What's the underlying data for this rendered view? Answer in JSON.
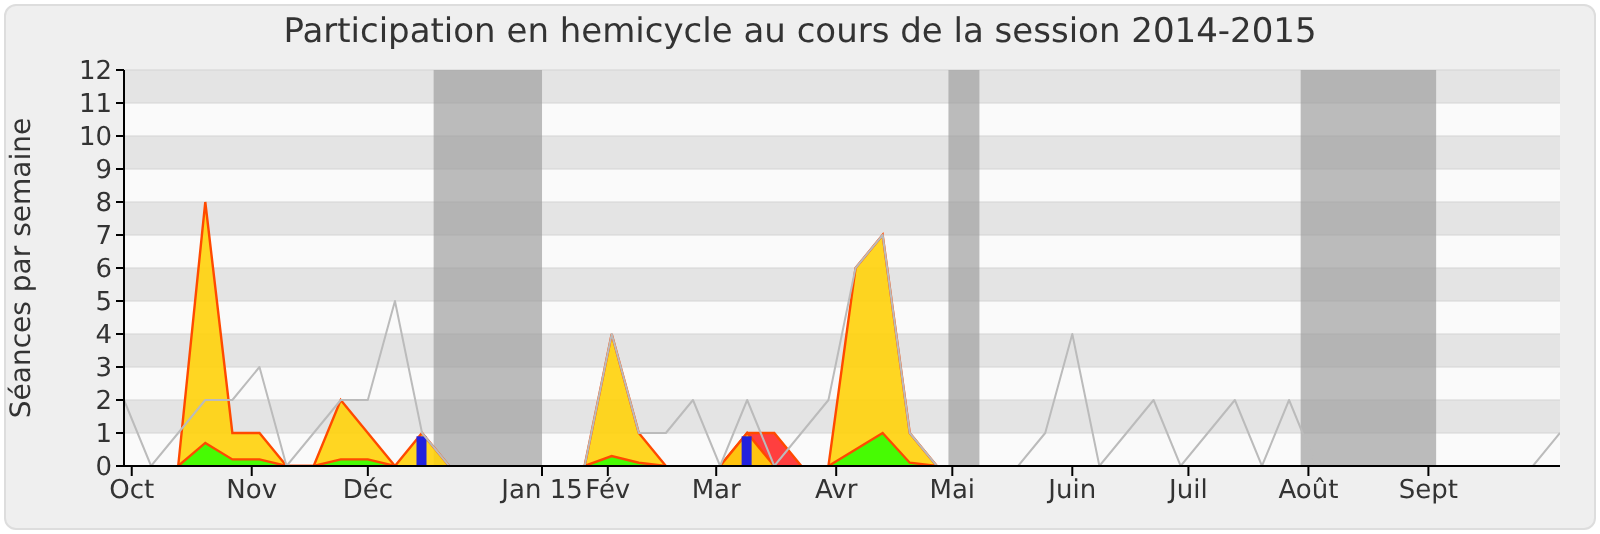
{
  "chart_data": {
    "type": "area",
    "title": "Participation en hemicycle au cours de la session 2014-2015",
    "ylabel": "Séances par semaine",
    "x": [
      "2014-09-29",
      "2014-10-06",
      "2014-10-13",
      "2014-10-20",
      "2014-10-27",
      "2014-11-03",
      "2014-11-10",
      "2014-11-17",
      "2014-11-24",
      "2014-12-01",
      "2014-12-08",
      "2014-12-15",
      "2014-12-22",
      "2014-12-29",
      "2015-01-05",
      "2015-01-12",
      "2015-01-19",
      "2015-01-26",
      "2015-02-02",
      "2015-02-09",
      "2015-02-16",
      "2015-02-23",
      "2015-03-02",
      "2015-03-09",
      "2015-03-16",
      "2015-03-23",
      "2015-03-30",
      "2015-04-06",
      "2015-04-13",
      "2015-04-20",
      "2015-04-27",
      "2015-05-04",
      "2015-05-11",
      "2015-05-18",
      "2015-05-25",
      "2015-06-01",
      "2015-06-08",
      "2015-06-15",
      "2015-06-22",
      "2015-06-29",
      "2015-07-06",
      "2015-07-13",
      "2015-07-20",
      "2015-07-27",
      "2015-08-03",
      "2015-08-10",
      "2015-08-17",
      "2015-08-24",
      "2015-08-31",
      "2015-09-07",
      "2015-09-14",
      "2015-09-21",
      "2015-09-28",
      "2015-10-05"
    ],
    "series": [
      {
        "type": "line",
        "color": "#bbbbbb",
        "values": [
          2,
          0,
          1,
          2,
          2,
          3,
          0,
          1,
          2,
          2,
          5,
          1,
          0,
          0,
          0,
          0,
          0,
          0,
          4,
          1,
          1,
          2,
          0,
          2,
          0,
          1,
          2,
          6,
          7,
          1,
          0,
          0,
          0,
          0,
          1,
          4,
          0,
          1,
          2,
          0,
          1,
          2,
          0,
          2,
          0,
          0,
          0,
          0,
          0,
          0,
          0,
          0,
          0,
          1
        ]
      },
      {
        "color": "#ff2a2a",
        "values": [
          null,
          null,
          null,
          null,
          null,
          null,
          null,
          null,
          null,
          null,
          null,
          null,
          null,
          null,
          null,
          null,
          null,
          null,
          null,
          null,
          null,
          null,
          0,
          1,
          1,
          0,
          null,
          null,
          null,
          null,
          null,
          null,
          null,
          null,
          null,
          null,
          null,
          null,
          null,
          null,
          null,
          null,
          null,
          null,
          null,
          null,
          null,
          null,
          null,
          null,
          null,
          null,
          null,
          null
        ]
      },
      {
        "color": "#ffd20a",
        "values": [
          null,
          null,
          0,
          8,
          1,
          1,
          0,
          0,
          2,
          1,
          0,
          1,
          0,
          null,
          null,
          null,
          null,
          0,
          4,
          1,
          0,
          null,
          0,
          1,
          0,
          null,
          0,
          6,
          7,
          1,
          0,
          null,
          null,
          null,
          null,
          null,
          null,
          null,
          null,
          null,
          null,
          null,
          null,
          null,
          null,
          null,
          null,
          null,
          null,
          null,
          null,
          null,
          null,
          null
        ]
      },
      {
        "color": "#33ff00",
        "values": [
          null,
          null,
          0,
          0.7,
          0.2,
          0.2,
          0,
          0,
          0.2,
          0.2,
          0,
          null,
          null,
          null,
          null,
          null,
          null,
          0,
          0.3,
          0.1,
          0,
          null,
          null,
          null,
          null,
          null,
          0,
          0.5,
          1,
          0.1,
          0,
          null,
          null,
          null,
          null,
          null,
          null,
          null,
          null,
          null,
          null,
          null,
          null,
          null,
          null,
          null,
          null,
          null,
          null,
          null,
          null,
          null,
          null,
          null
        ]
      },
      {
        "type": "bar",
        "color": "#2222dd",
        "values": [
          null,
          null,
          null,
          null,
          null,
          null,
          null,
          null,
          null,
          null,
          null,
          0.9,
          null,
          null,
          null,
          null,
          null,
          null,
          null,
          null,
          null,
          null,
          null,
          0.9,
          null,
          null,
          null,
          null,
          null,
          null,
          null,
          null,
          null,
          null,
          null,
          null,
          null,
          null,
          null,
          null,
          null,
          null,
          null,
          null,
          null,
          null,
          null,
          null,
          null,
          null,
          null,
          null,
          null,
          null
        ]
      }
    ],
    "xlim": [
      "2014-09-29",
      "2015-10-05"
    ],
    "xticks": [
      {
        "value": "2014-10",
        "label": "Oct"
      },
      {
        "value": "2014-11",
        "label": "Nov"
      },
      {
        "value": "2014-12",
        "label": "Déc"
      },
      {
        "value": "2015-01-15",
        "label": "Jan 15"
      },
      {
        "value": "2015-02",
        "label": "Fév"
      },
      {
        "value": "2015-03",
        "label": "Mar"
      },
      {
        "value": "2015-04",
        "label": "Avr"
      },
      {
        "value": "2015-05",
        "label": "Mai"
      },
      {
        "value": "2015-06",
        "label": "Juin"
      },
      {
        "value": "2015-07",
        "label": "Juil"
      },
      {
        "value": "2015-08",
        "label": "Août"
      },
      {
        "value": "2015-09",
        "label": "Sept"
      }
    ],
    "ylim": [
      0,
      12
    ],
    "yticks": [
      0,
      1,
      2,
      3,
      4,
      5,
      6,
      7,
      8,
      9,
      10,
      11,
      12
    ],
    "bands": [
      {
        "axis": "x",
        "from": "2014-12-18",
        "to": "2015-01-15",
        "color": "#999999"
      },
      {
        "axis": "x",
        "from": "2015-04-30",
        "to": "2015-05-08",
        "color": "#999999"
      },
      {
        "axis": "x",
        "from": "2015-07-30",
        "to": "2015-09-03",
        "color": "#999999"
      }
    ],
    "grid": "y",
    "legend": false
  }
}
